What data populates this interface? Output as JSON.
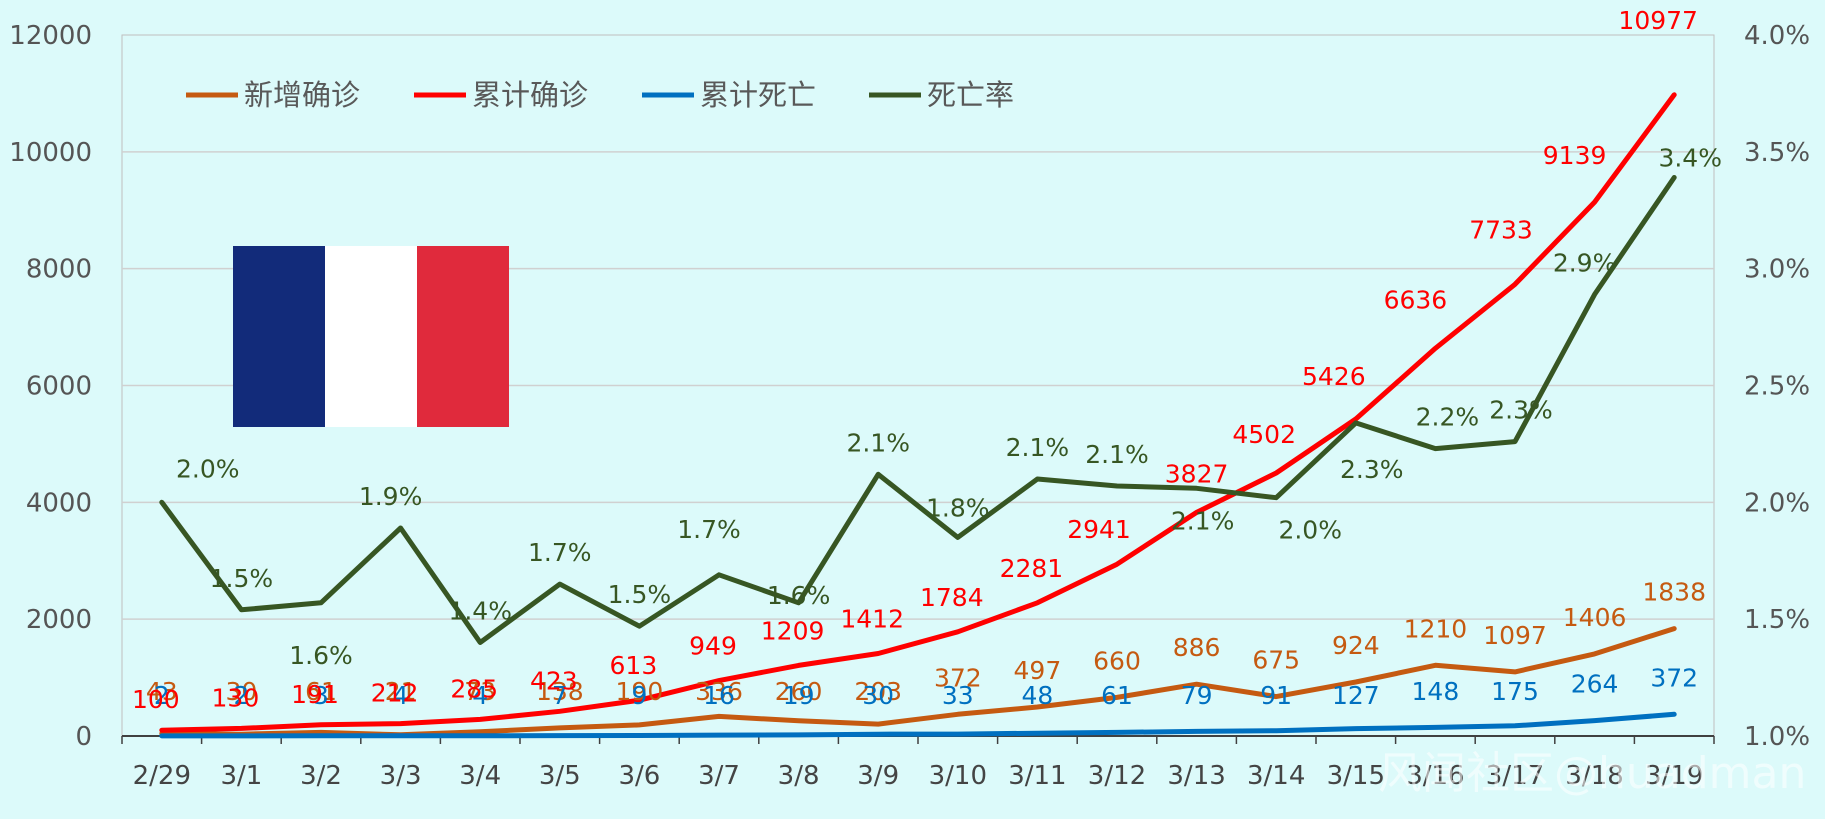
{
  "chart_data": {
    "type": "line",
    "title": "",
    "categories": [
      "2/29",
      "3/1",
      "3/2",
      "3/3",
      "3/4",
      "3/5",
      "3/6",
      "3/7",
      "3/8",
      "3/9",
      "3/10",
      "3/11",
      "3/12",
      "3/13",
      "3/14",
      "3/15",
      "3/16",
      "3/17",
      "3/18",
      "3/19"
    ],
    "y_left": {
      "range": [
        0,
        12000
      ],
      "ticks": [
        "0",
        "2000",
        "4000",
        "6000",
        "8000",
        "10000",
        "12000"
      ]
    },
    "y_right": {
      "range": [
        0.01,
        0.04
      ],
      "ticks": [
        "1.0%",
        "1.5%",
        "2.0%",
        "2.5%",
        "3.0%",
        "3.5%",
        "4.0%"
      ]
    },
    "grid": "horizontal",
    "legend_position": "top-left",
    "series": [
      {
        "name": "新增确诊",
        "axis": "left",
        "color": "#c55a11",
        "values": [
          43,
          30,
          61,
          21,
          73,
          138,
          190,
          336,
          260,
          203,
          372,
          497,
          660,
          886,
          675,
          924,
          1210,
          1097,
          1406,
          1838
        ],
        "labels": [
          "43",
          "30",
          "61",
          "21",
          "73",
          "138",
          "190",
          "336",
          "260",
          "203",
          "372",
          "497",
          "660",
          "886",
          "675",
          "924",
          "1210",
          "1097",
          "1406",
          "1838"
        ]
      },
      {
        "name": "累计确诊",
        "axis": "left",
        "color": "#ff0000",
        "values": [
          100,
          130,
          191,
          212,
          285,
          423,
          613,
          949,
          1209,
          1412,
          1784,
          2281,
          2941,
          3827,
          4502,
          5426,
          6636,
          7733,
          9139,
          10977
        ],
        "labels": [
          "100",
          "130",
          "191",
          "212",
          "285",
          "423",
          "613",
          "949",
          "1209",
          "1412",
          "1784",
          "2281",
          "2941",
          "3827",
          "4502",
          "5426",
          "6636",
          "7733",
          "9139",
          "10977"
        ]
      },
      {
        "name": "累计死亡",
        "axis": "left",
        "color": "#0070c0",
        "values": [
          2,
          2,
          3,
          4,
          4,
          7,
          9,
          16,
          19,
          30,
          33,
          48,
          61,
          79,
          91,
          127,
          148,
          175,
          264,
          372
        ],
        "labels": [
          "2",
          "2",
          "3",
          "4",
          "4",
          "7",
          "9",
          "16",
          "19",
          "30",
          "33",
          "48",
          "61",
          "79",
          "91",
          "127",
          "148",
          "175",
          "264",
          "372"
        ]
      },
      {
        "name": "死亡率",
        "axis": "right",
        "color": "#375623",
        "values": [
          0.02,
          0.0154,
          0.0157,
          0.0189,
          0.014,
          0.0165,
          0.0147,
          0.0169,
          0.0157,
          0.0212,
          0.0185,
          0.021,
          0.0207,
          0.0206,
          0.0202,
          0.0234,
          0.0223,
          0.0226,
          0.0289,
          0.0339
        ],
        "labels": [
          "2.0%",
          "1.5%",
          "1.6%",
          "1.9%",
          "1.4%",
          "1.7%",
          "1.5%",
          "1.7%",
          "1.6%",
          "2.1%",
          "1.8%",
          "2.1%",
          "2.1%",
          "2.1%",
          "2.0%",
          "2.3%",
          "2.2%",
          "2.3%",
          "2.9%",
          "3.4%"
        ]
      }
    ]
  },
  "flag": {
    "colors": [
      "#122b7a",
      "#ffffff",
      "#e02a3c"
    ]
  },
  "watermark": {
    "text": "风闻社区@huadman"
  }
}
